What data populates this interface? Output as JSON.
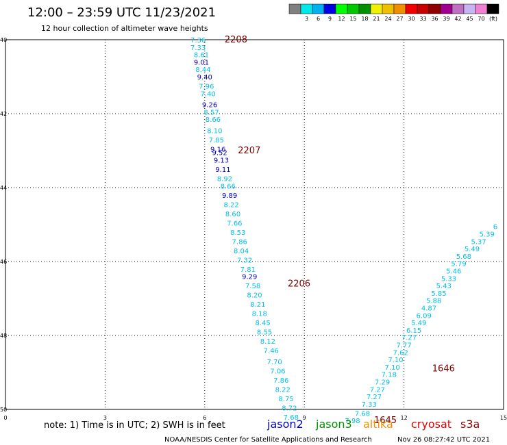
{
  "header": {
    "title": "12:00 – 23:59 UTC 11/23/2021",
    "subtitle": "12 hour collection of altimeter wave heights"
  },
  "colorbar": {
    "bins": [
      {
        "color": "#808080",
        "label": ""
      },
      {
        "color": "#00e8e8",
        "label": "3"
      },
      {
        "color": "#00b0f0",
        "label": "6"
      },
      {
        "color": "#0000e0",
        "label": "9"
      },
      {
        "color": "#00ff00",
        "label": "12"
      },
      {
        "color": "#00c800",
        "label": "15"
      },
      {
        "color": "#009000",
        "label": "18"
      },
      {
        "color": "#f0f000",
        "label": "21"
      },
      {
        "color": "#f0c000",
        "label": "24"
      },
      {
        "color": "#f09000",
        "label": "27"
      },
      {
        "color": "#f00000",
        "label": "30"
      },
      {
        "color": "#c80000",
        "label": "33"
      },
      {
        "color": "#900000",
        "label": "36"
      },
      {
        "color": "#a00090",
        "label": "39"
      },
      {
        "color": "#c070c0",
        "label": "42"
      },
      {
        "color": "#c8b4f0",
        "label": "45"
      },
      {
        "color": "#f080d0",
        "label": "70"
      },
      {
        "color": "#000000",
        "label": ""
      }
    ],
    "unit": "(ft)"
  },
  "colors": {
    "light_cyan": "#00c0e8",
    "blue": "#0000c8",
    "time_red": "#7a0000",
    "time_green": "#006400"
  },
  "chart_data": {
    "type": "scatter",
    "x_ticks": [
      "0",
      "3",
      "6",
      "9",
      "12",
      "15"
    ],
    "y_ticks": [
      "40",
      "42",
      "44",
      "46",
      "48",
      "50"
    ],
    "xlim": [
      0,
      15
    ],
    "ylim": [
      -40,
      -50
    ],
    "grid": true,
    "tracks": [
      {
        "times": [
          {
            "label": "2208",
            "y": -40.0,
            "x": 6.6,
            "color": "time_red"
          },
          {
            "label": "2207",
            "y": -43.0,
            "x": 7.0,
            "color": "time_red"
          },
          {
            "label": "2206",
            "y": -46.6,
            "x": 8.5,
            "color": "time_red"
          }
        ],
        "points": [
          {
            "x": 5.8,
            "y": -40.0,
            "v": "7.36",
            "c": "light_cyan"
          },
          {
            "x": 5.8,
            "y": -40.2,
            "v": "7.33",
            "c": "light_cyan"
          },
          {
            "x": 5.9,
            "y": -40.4,
            "v": "8.61",
            "c": "light_cyan"
          },
          {
            "x": 5.9,
            "y": -40.6,
            "v": "9.01",
            "c": "blue"
          },
          {
            "x": 5.95,
            "y": -40.8,
            "v": "8.44",
            "c": "light_cyan"
          },
          {
            "x": 6.0,
            "y": -41.0,
            "v": "9.40",
            "c": "blue"
          },
          {
            "x": 6.05,
            "y": -41.25,
            "v": "7.96",
            "c": "light_cyan"
          },
          {
            "x": 6.1,
            "y": -41.45,
            "v": "7.40",
            "c": "light_cyan"
          },
          {
            "x": 6.15,
            "y": -41.75,
            "v": "9.26",
            "c": "blue"
          },
          {
            "x": 6.2,
            "y": -41.95,
            "v": "8.57",
            "c": "light_cyan"
          },
          {
            "x": 6.25,
            "y": -42.15,
            "v": "8.66",
            "c": "light_cyan"
          },
          {
            "x": 6.3,
            "y": -42.45,
            "v": "8.10",
            "c": "light_cyan"
          },
          {
            "x": 6.35,
            "y": -42.7,
            "v": "7.85",
            "c": "light_cyan"
          },
          {
            "x": 6.4,
            "y": -42.95,
            "v": "9.16",
            "c": "blue"
          },
          {
            "x": 6.45,
            "y": -43.05,
            "v": "9.52",
            "c": "blue"
          },
          {
            "x": 6.5,
            "y": -43.25,
            "v": "9.13",
            "c": "blue"
          },
          {
            "x": 6.55,
            "y": -43.5,
            "v": "9.11",
            "c": "blue"
          },
          {
            "x": 6.6,
            "y": -43.75,
            "v": "8.92",
            "c": "light_cyan"
          },
          {
            "x": 6.7,
            "y": -43.95,
            "v": "8.66",
            "c": "light_cyan"
          },
          {
            "x": 6.75,
            "y": -44.2,
            "v": "9.89",
            "c": "blue"
          },
          {
            "x": 6.8,
            "y": -44.45,
            "v": "8.22",
            "c": "light_cyan"
          },
          {
            "x": 6.85,
            "y": -44.7,
            "v": "8.60",
            "c": "light_cyan"
          },
          {
            "x": 6.9,
            "y": -44.95,
            "v": "7.66",
            "c": "light_cyan"
          },
          {
            "x": 7.0,
            "y": -45.2,
            "v": "8.53",
            "c": "light_cyan"
          },
          {
            "x": 7.05,
            "y": -45.45,
            "v": "7.86",
            "c": "light_cyan"
          },
          {
            "x": 7.1,
            "y": -45.7,
            "v": "8.04",
            "c": "light_cyan"
          },
          {
            "x": 7.2,
            "y": -45.95,
            "v": "7.32",
            "c": "light_cyan"
          },
          {
            "x": 7.3,
            "y": -46.2,
            "v": "7.81",
            "c": "light_cyan"
          },
          {
            "x": 7.35,
            "y": -46.4,
            "v": "9.29",
            "c": "blue"
          },
          {
            "x": 7.45,
            "y": -46.65,
            "v": "7.58",
            "c": "light_cyan"
          },
          {
            "x": 7.5,
            "y": -46.9,
            "v": "8.20",
            "c": "light_cyan"
          },
          {
            "x": 7.6,
            "y": -47.15,
            "v": "8.21",
            "c": "light_cyan"
          },
          {
            "x": 7.65,
            "y": -47.4,
            "v": "8.18",
            "c": "light_cyan"
          },
          {
            "x": 7.75,
            "y": -47.65,
            "v": "8.45",
            "c": "light_cyan"
          },
          {
            "x": 7.8,
            "y": -47.9,
            "v": "8.55",
            "c": "light_cyan"
          },
          {
            "x": 7.9,
            "y": -48.15,
            "v": "8.12",
            "c": "light_cyan"
          },
          {
            "x": 8.0,
            "y": -48.4,
            "v": "7.46",
            "c": "light_cyan"
          },
          {
            "x": 8.1,
            "y": -48.7,
            "v": "7.70",
            "c": "light_cyan"
          },
          {
            "x": 8.2,
            "y": -48.95,
            "v": "7.06",
            "c": "light_cyan"
          },
          {
            "x": 8.3,
            "y": -49.2,
            "v": "7.86",
            "c": "light_cyan"
          },
          {
            "x": 8.35,
            "y": -49.45,
            "v": "8.22",
            "c": "light_cyan"
          },
          {
            "x": 8.45,
            "y": -49.7,
            "v": "8.75",
            "c": "light_cyan"
          },
          {
            "x": 8.55,
            "y": -49.95,
            "v": "8.72",
            "c": "light_cyan"
          },
          {
            "x": 8.6,
            "y": -50.2,
            "v": "7.68",
            "c": "light_cyan"
          }
        ]
      },
      {
        "times": [
          {
            "label": "1645",
            "y": -50.3,
            "x": 11.1,
            "color": "time_green"
          },
          {
            "label": "1646",
            "y": -48.9,
            "x": 12.85,
            "color": "time_green"
          }
        ],
        "points": [
          {
            "x": 10.45,
            "y": -50.3,
            "v": "7.98",
            "c": "light_cyan"
          },
          {
            "x": 10.75,
            "y": -50.1,
            "v": "7.68",
            "c": "light_cyan"
          },
          {
            "x": 10.95,
            "y": -49.85,
            "v": "7.33",
            "c": "light_cyan"
          },
          {
            "x": 11.1,
            "y": -49.65,
            "v": "7.27",
            "c": "light_cyan"
          },
          {
            "x": 11.2,
            "y": -49.45,
            "v": "7.27",
            "c": "light_cyan"
          },
          {
            "x": 11.35,
            "y": -49.25,
            "v": "7.29",
            "c": "light_cyan"
          },
          {
            "x": 11.55,
            "y": -49.05,
            "v": "7.18",
            "c": "light_cyan"
          },
          {
            "x": 11.65,
            "y": -48.85,
            "v": "7.10",
            "c": "light_cyan"
          },
          {
            "x": 11.75,
            "y": -48.65,
            "v": "7.10",
            "c": "light_cyan"
          },
          {
            "x": 11.9,
            "y": -48.45,
            "v": "7.62",
            "c": "light_cyan"
          },
          {
            "x": 12.0,
            "y": -48.25,
            "v": "7.77",
            "c": "light_cyan"
          },
          {
            "x": 12.15,
            "y": -48.05,
            "v": "7.27",
            "c": "light_cyan"
          },
          {
            "x": 12.3,
            "y": -47.85,
            "v": "6.15",
            "c": "light_cyan"
          },
          {
            "x": 12.45,
            "y": -47.65,
            "v": "5.49",
            "c": "light_cyan"
          },
          {
            "x": 12.6,
            "y": -47.45,
            "v": "6.09",
            "c": "light_cyan"
          },
          {
            "x": 12.75,
            "y": -47.25,
            "v": "4.87",
            "c": "light_cyan"
          },
          {
            "x": 12.9,
            "y": -47.05,
            "v": "5.88",
            "c": "light_cyan"
          },
          {
            "x": 13.05,
            "y": -46.85,
            "v": "5.85",
            "c": "light_cyan"
          },
          {
            "x": 13.2,
            "y": -46.65,
            "v": "5.43",
            "c": "light_cyan"
          },
          {
            "x": 13.35,
            "y": -46.45,
            "v": "5.33",
            "c": "light_cyan"
          },
          {
            "x": 13.5,
            "y": -46.25,
            "v": "5.46",
            "c": "light_cyan"
          },
          {
            "x": 13.65,
            "y": -46.05,
            "v": "5.79",
            "c": "light_cyan"
          },
          {
            "x": 13.8,
            "y": -45.85,
            "v": "5.68",
            "c": "light_cyan"
          },
          {
            "x": 14.05,
            "y": -45.65,
            "v": "5.49",
            "c": "light_cyan"
          },
          {
            "x": 14.25,
            "y": -45.45,
            "v": "5.37",
            "c": "light_cyan"
          },
          {
            "x": 14.5,
            "y": -45.25,
            "v": "5.39",
            "c": "light_cyan"
          },
          {
            "x": 14.75,
            "y": -45.05,
            "v": "6",
            "c": "light_cyan"
          }
        ]
      }
    ]
  },
  "footer": {
    "note": "note:  1) Time is in UTC;  2) SWH is in feet",
    "satellites": [
      {
        "name": "jason2",
        "color": "#0000c8"
      },
      {
        "name": "jason3",
        "color": "#009000"
      },
      {
        "name": "altika",
        "color": "#f09000"
      },
      {
        "name": "cryosat",
        "color": "#e00000"
      },
      {
        "name": "s3a",
        "color": "#900000"
      }
    ],
    "credit": "NOAA/NESDIS Center for Satellite Applications and Research",
    "timestamp": "Nov 26 08:27:42 UTC 2021"
  }
}
